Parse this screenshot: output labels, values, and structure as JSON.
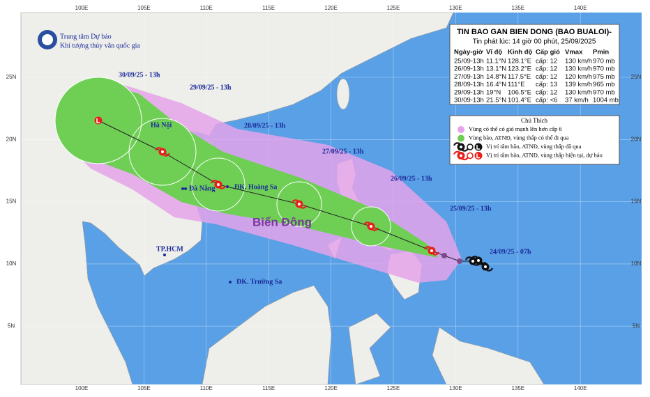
{
  "header": {
    "org_line1": "Trung tâm Dự báo",
    "org_line2": "Khí tượng thủy văn quốc gia"
  },
  "bulletin": {
    "title": "TIN BAO GAN BIEN DONG (BAO BUALOI)-",
    "subtitle": "Tin phát lúc: 14 giờ 00 phút, 25/09/2025",
    "columns": [
      "Ngày-giờ",
      "Vĩ độ",
      "Kinh độ",
      "Cấp gió",
      "Vmax",
      "Pmin"
    ],
    "rows": [
      [
        "25/09-13h",
        "11.1°N",
        "128.1°E",
        "cấp: 12",
        "130 km/h",
        "970 mb"
      ],
      [
        "26/09-13h",
        "13.1°N",
        "123.2°E",
        "cấp: 12",
        "130 km/h",
        "970 mb"
      ],
      [
        "27/09-13h",
        "14.8°N",
        "117.5°E",
        "cấp: 12",
        "120 km/h",
        "975 mb"
      ],
      [
        "28/09-13h",
        "16.4°N",
        "111°E",
        "cấp: 13",
        "139 km/h",
        "965 mb"
      ],
      [
        "29/09-13h",
        "19°N",
        "106.5°E",
        "cấp: 12",
        "130 km/h",
        "970 mb"
      ],
      [
        "30/09-13h",
        "21.5°N",
        "101.4°E",
        "cấp: <6",
        "37 km/h",
        "1004 mb"
      ]
    ]
  },
  "legend": {
    "title": "Chú Thích",
    "items": [
      "Vùng có thể có gió mạnh lên hơn cấp 6",
      "Vùng bão, ATNĐ, vùng thấp có thể đi qua",
      "Vị trí tâm bão, ATNĐ, vùng thấp đã qua",
      "Vị trí tâm bão, ATNĐ, vùng thấp hiện tại, dự báo"
    ]
  },
  "map": {
    "lon_labels": [
      "100E",
      "105E",
      "110E",
      "115E",
      "120E",
      "125E",
      "130E",
      "135E",
      "140E"
    ],
    "lat_labels": [
      "25N",
      "20N",
      "15N",
      "10N",
      "5N"
    ],
    "date_labels": [
      "30/09/25 - 13h",
      "29/09/25 - 13h",
      "28/09/25 - 13h",
      "27/09/25 - 13h",
      "26/09/25 - 13h",
      "25/09/25 - 13h",
      "24/09/25 - 07h"
    ],
    "places": [
      "Hà Nội",
      "Đà Nẵng",
      "ĐK. Hoàng Sa",
      "TP.HCM",
      "ĐK. Trường Sa"
    ],
    "sea_label": "Biển Đông"
  }
}
